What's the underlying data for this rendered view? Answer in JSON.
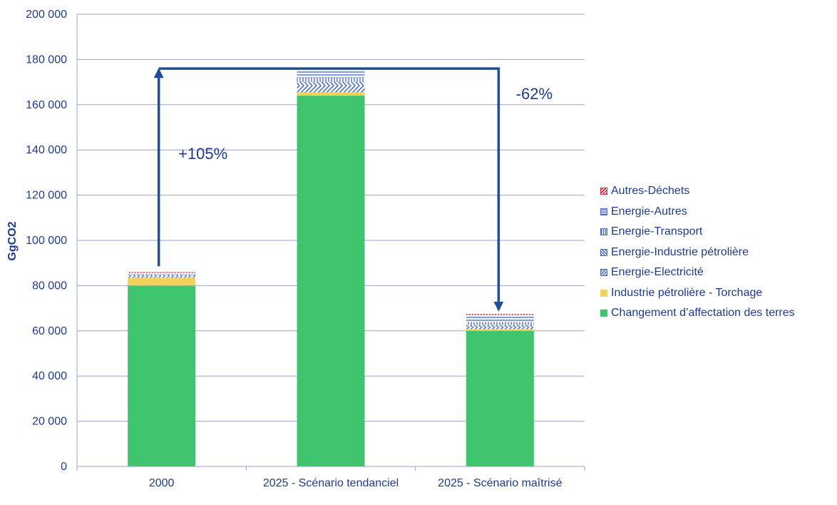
{
  "chart_data": {
    "type": "bar",
    "stacked": true,
    "categories": [
      "2000",
      "2025 - Scénario tendanciel",
      "2025 - Scénario maîtrisé"
    ],
    "ylabel": "GgCO2",
    "ylim": [
      0,
      200000
    ],
    "yticks": [
      "0",
      "20 000",
      "40 000",
      "60 000",
      "80 000",
      "100 000",
      "120 000",
      "140 000",
      "160 000",
      "180 000",
      "200 000"
    ],
    "grid": true,
    "legend_position": "right",
    "series": [
      {
        "name": "Changement d’affectation des terres",
        "color": "#40c46e",
        "pattern": "solid",
        "values": [
          80000,
          164000,
          60000
        ]
      },
      {
        "name": "Industrie pétrolière - Torchage",
        "color": "#f3d25c",
        "pattern": "solid",
        "values": [
          3500,
          1500,
          800
        ]
      },
      {
        "name": "Energie-Electricité",
        "color": "#4f6fbf",
        "pattern": "diag-up",
        "values": [
          500,
          3000,
          1000
        ]
      },
      {
        "name": "Energie-Industrie pétrolière",
        "color": "#4f6fbf",
        "pattern": "diag-down",
        "values": [
          700,
          1500,
          700
        ]
      },
      {
        "name": "Energie-Transport",
        "color": "#4f6fbf",
        "pattern": "vertical",
        "values": [
          400,
          2000,
          1500
        ]
      },
      {
        "name": "Energie-Autres",
        "color": "#4f6fbf",
        "pattern": "horizontal",
        "values": [
          500,
          3500,
          3000
        ]
      },
      {
        "name": "Autres-Déchets",
        "color": "#d8283a",
        "pattern": "diag-up-red",
        "values": [
          400,
          500,
          500
        ]
      }
    ],
    "annotations": [
      {
        "text": "+105%",
        "from": "2000",
        "to": "2025 - Scénario tendanciel",
        "level": 176000
      },
      {
        "text": "-62%",
        "from": "2025 - Scénario tendanciel",
        "to": "2025 - Scénario maîtrisé",
        "level": 176000
      }
    ]
  }
}
